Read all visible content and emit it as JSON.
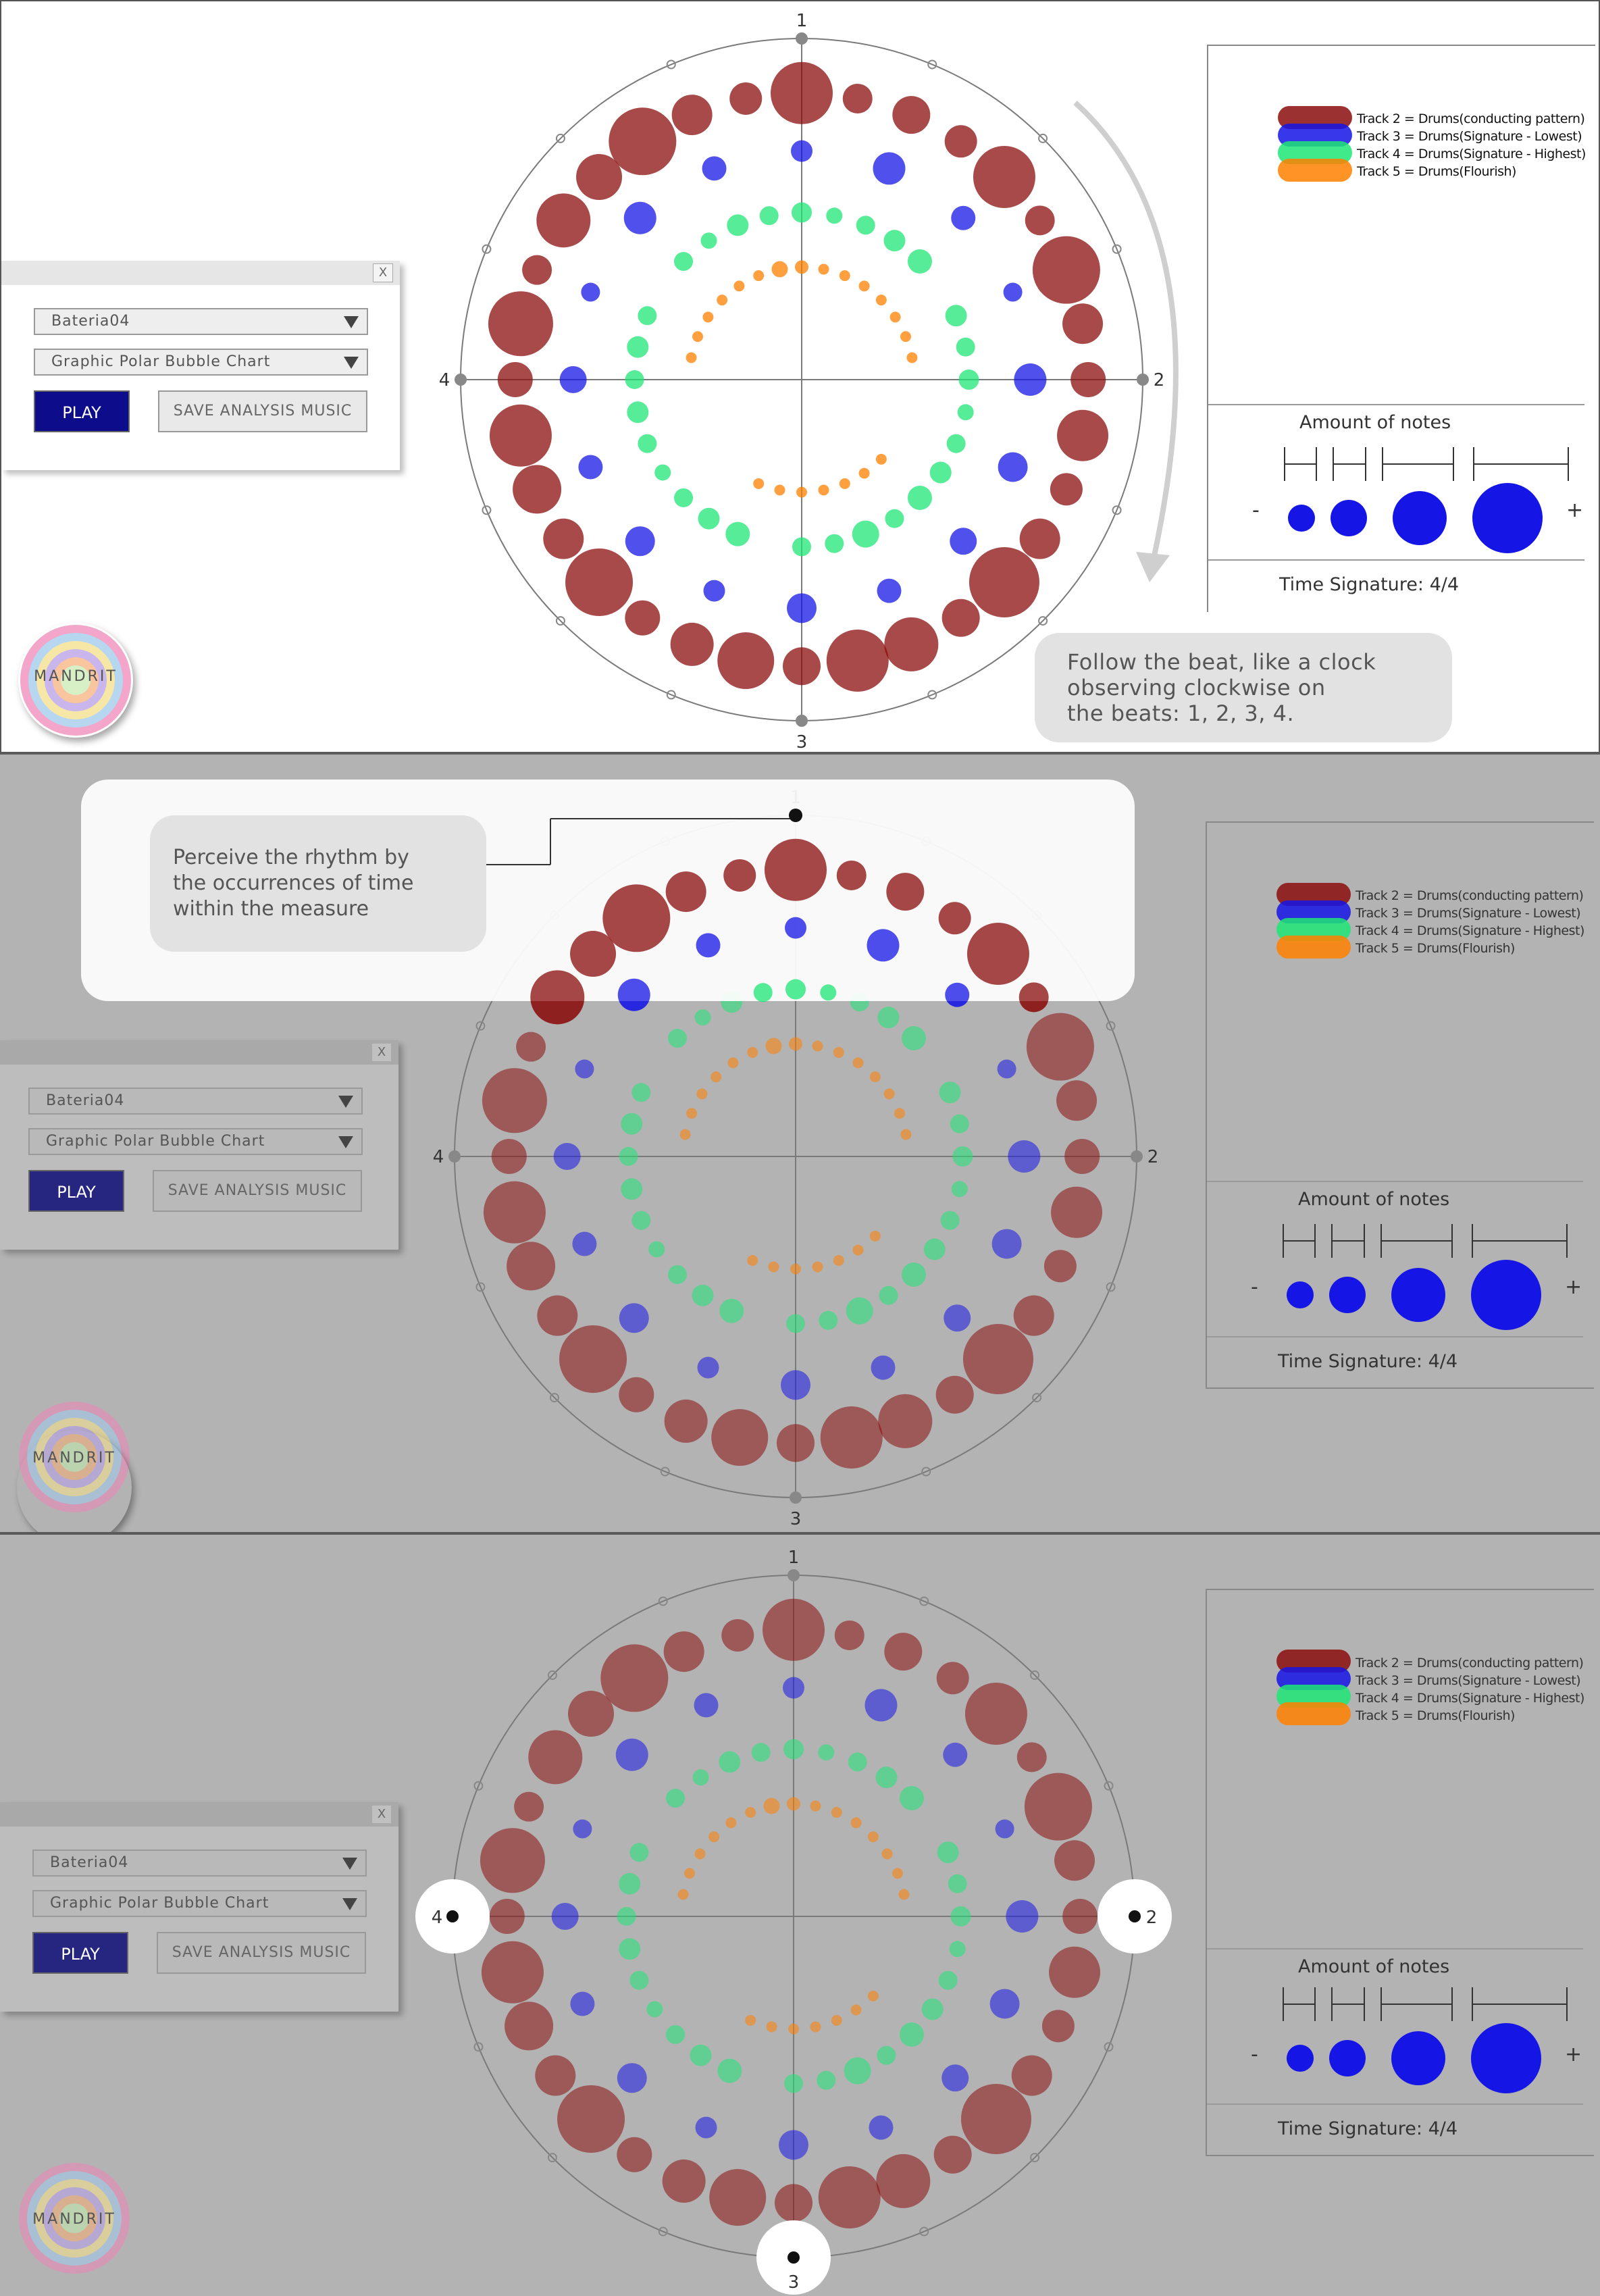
{
  "app": {
    "logo_text": "MANDRIT"
  },
  "controls": {
    "close_label": "X",
    "song_select": "Bateria04",
    "chart_select": "Graphic Polar Bubble Chart",
    "play_label": "PLAY",
    "save_label": "SAVE ANALYSIS MUSIC"
  },
  "legend": {
    "tracks": [
      {
        "label": "Track 2 = Drums(conducting pattern)",
        "color": "#8b0d0d"
      },
      {
        "label": "Track 3 = Drums(Signature - Lowest)",
        "color": "#1515e6"
      },
      {
        "label": "Track 4 = Drums(Signature - Highest)",
        "color": "#1fe676"
      },
      {
        "label": "Track 5 = Drums(Flourish)",
        "color": "#ff8000"
      }
    ],
    "amount_title": "Amount of notes",
    "minus": "-",
    "plus": "+",
    "time_signature": "Time Signature: 4/4"
  },
  "callouts": {
    "beat": "Follow the beat, like a clock observing clockwise on the beats: 1, 2, 3, 4.",
    "beat_lines": [
      "Follow the beat, like a clock",
      "observing clockwise on",
      "the beats: 1, 2, 3, 4."
    ],
    "rhythm_lines": [
      "Perceive the rhythm by",
      "the occurrences of time",
      "within the measure"
    ]
  },
  "chart_data": {
    "type": "polar-bubble",
    "beat_labels": [
      "1",
      "2",
      "3",
      "4"
    ],
    "series": [
      {
        "name": "Track 2 = Drums(conducting pattern)",
        "color": "#8b0d0d",
        "ring": 0.84,
        "sizes": [
          46,
          22,
          28,
          24,
          46,
          22,
          50,
          30,
          26,
          38,
          24,
          30,
          52,
          28,
          40,
          46,
          28,
          42,
          32,
          26,
          50,
          30,
          36,
          46,
          26,
          48,
          22,
          40,
          34,
          50,
          30,
          24
        ]
      },
      {
        "name": "Track 3 = Drums(Signature - Lowest)",
        "color": "#1515e6",
        "ring": 0.67,
        "sizes": [
          16,
          0,
          24,
          0,
          18,
          0,
          14,
          0,
          24,
          0,
          22,
          0,
          20,
          0,
          18,
          0,
          22,
          0,
          16,
          0,
          22,
          0,
          18,
          0,
          20,
          0,
          14,
          0,
          24,
          0,
          18,
          0
        ]
      },
      {
        "name": "Track 4 = Drums(Signature - Highest)",
        "color": "#1fe676",
        "ring": 0.49,
        "sizes": [
          15,
          12,
          14,
          16,
          18,
          0,
          16,
          14,
          15,
          12,
          14,
          16,
          18,
          14,
          20,
          14,
          14,
          0,
          18,
          16,
          14,
          12,
          14,
          16,
          14,
          16,
          14,
          0,
          14,
          12,
          16,
          14
        ]
      },
      {
        "name": "Track 5 = Drums(Flourish)",
        "color": "#ff8000",
        "ring": 0.33,
        "sizes": [
          10,
          8,
          8,
          8,
          8,
          8,
          8,
          8,
          0,
          0,
          0,
          0,
          8,
          8,
          8,
          8,
          8,
          8,
          8,
          0,
          0,
          0,
          0,
          0,
          0,
          8,
          8,
          8,
          8,
          8,
          8,
          12
        ]
      }
    ],
    "size_legend": [
      "smallest",
      "small",
      "medium",
      "largest"
    ]
  },
  "colors": {
    "accent": "#0d0d8c",
    "grid": "#888888"
  }
}
